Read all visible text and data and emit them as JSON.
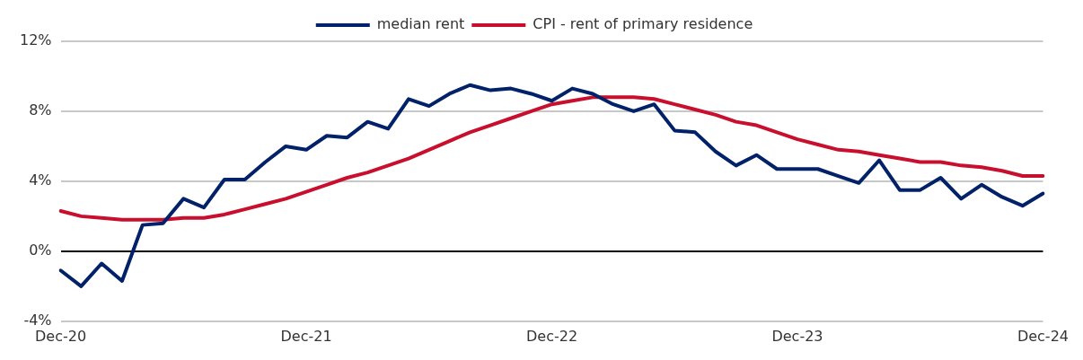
{
  "chart_data": {
    "type": "line",
    "categories": [
      "Dec-20",
      null,
      null,
      null,
      null,
      null,
      null,
      null,
      null,
      null,
      null,
      null,
      "Dec-21",
      null,
      null,
      null,
      null,
      null,
      null,
      null,
      null,
      null,
      null,
      null,
      "Dec-22",
      null,
      null,
      null,
      null,
      null,
      null,
      null,
      null,
      null,
      null,
      null,
      "Dec-23",
      null,
      null,
      null,
      null,
      null,
      null,
      null,
      null,
      null,
      null,
      null,
      "Dec-24"
    ],
    "series": [
      {
        "name": "median rent",
        "color": "#012169",
        "values": [
          -1.1,
          -2.0,
          -0.7,
          -1.7,
          1.5,
          1.6,
          3.0,
          2.5,
          4.1,
          4.1,
          5.1,
          6.0,
          5.8,
          6.6,
          6.5,
          7.4,
          7.0,
          8.7,
          8.3,
          9.0,
          9.5,
          9.2,
          9.3,
          9.0,
          8.6,
          9.3,
          9.0,
          8.4,
          8.0,
          8.4,
          6.9,
          6.8,
          5.7,
          4.9,
          5.5,
          4.7,
          4.7,
          4.7,
          4.3,
          3.9,
          5.2,
          3.5,
          3.5,
          4.2,
          3.0,
          3.8,
          3.1,
          2.6,
          3.3
        ]
      },
      {
        "name": "CPI - rent of primary residence",
        "color": "#c8102e",
        "values": [
          2.3,
          2.0,
          1.9,
          1.8,
          1.8,
          1.8,
          1.9,
          1.9,
          2.1,
          2.4,
          2.7,
          3.0,
          3.4,
          3.8,
          4.2,
          4.5,
          4.9,
          5.3,
          5.8,
          6.3,
          6.8,
          7.2,
          7.6,
          8.0,
          8.4,
          8.6,
          8.8,
          8.8,
          8.8,
          8.7,
          8.4,
          8.1,
          7.8,
          7.4,
          7.2,
          6.8,
          6.4,
          6.1,
          5.8,
          5.7,
          5.5,
          5.3,
          5.1,
          5.1,
          4.9,
          4.8,
          4.6,
          4.3,
          4.3
        ]
      }
    ],
    "ylim": [
      -4,
      12
    ],
    "yticks": [
      {
        "value": -4,
        "label": "-4%"
      },
      {
        "value": 0,
        "label": "0%"
      },
      {
        "value": 4,
        "label": "4%"
      },
      {
        "value": 8,
        "label": "8%"
      },
      {
        "value": 12,
        "label": "12%"
      }
    ],
    "grid": "y",
    "legend": "top",
    "marker": "none",
    "line_style": "solid"
  }
}
